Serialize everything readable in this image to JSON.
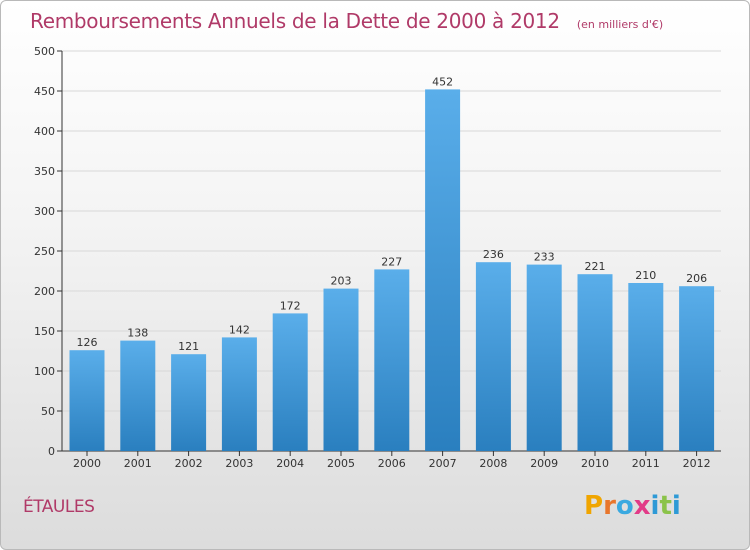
{
  "title": "Remboursements Annuels de la Dette de 2000 à 2012",
  "subtitle": "(en milliers d'€)",
  "commune": "ÉTAULES",
  "logo": {
    "letters": [
      "P",
      "r",
      "o",
      "x",
      "i",
      "t",
      "i"
    ],
    "colors": [
      "#f0a500",
      "#e8762c",
      "#3aa9e0",
      "#e23b88",
      "#2e9ad6",
      "#8bc34a",
      "#2e9ad6"
    ]
  },
  "colors": {
    "bar_top": "#5aaeea",
    "bar_bottom": "#2a7fbf",
    "title": "#b03a68",
    "grid": "#d8d8d8",
    "axis": "#333333"
  },
  "chart_data": {
    "type": "bar",
    "title": "Remboursements Annuels de la Dette de 2000 à 2012",
    "subtitle": "(en milliers d'€)",
    "categories": [
      "2000",
      "2001",
      "2002",
      "2003",
      "2004",
      "2005",
      "2006",
      "2007",
      "2008",
      "2009",
      "2010",
      "2011",
      "2012"
    ],
    "values": [
      126,
      138,
      121,
      142,
      172,
      203,
      227,
      452,
      236,
      233,
      221,
      210,
      206
    ],
    "xlabel": "",
    "ylabel": "",
    "ylim": [
      0,
      500
    ],
    "yticks": [
      0,
      50,
      100,
      150,
      200,
      250,
      300,
      350,
      400,
      450,
      500
    ],
    "grid": true,
    "legend": "none"
  }
}
